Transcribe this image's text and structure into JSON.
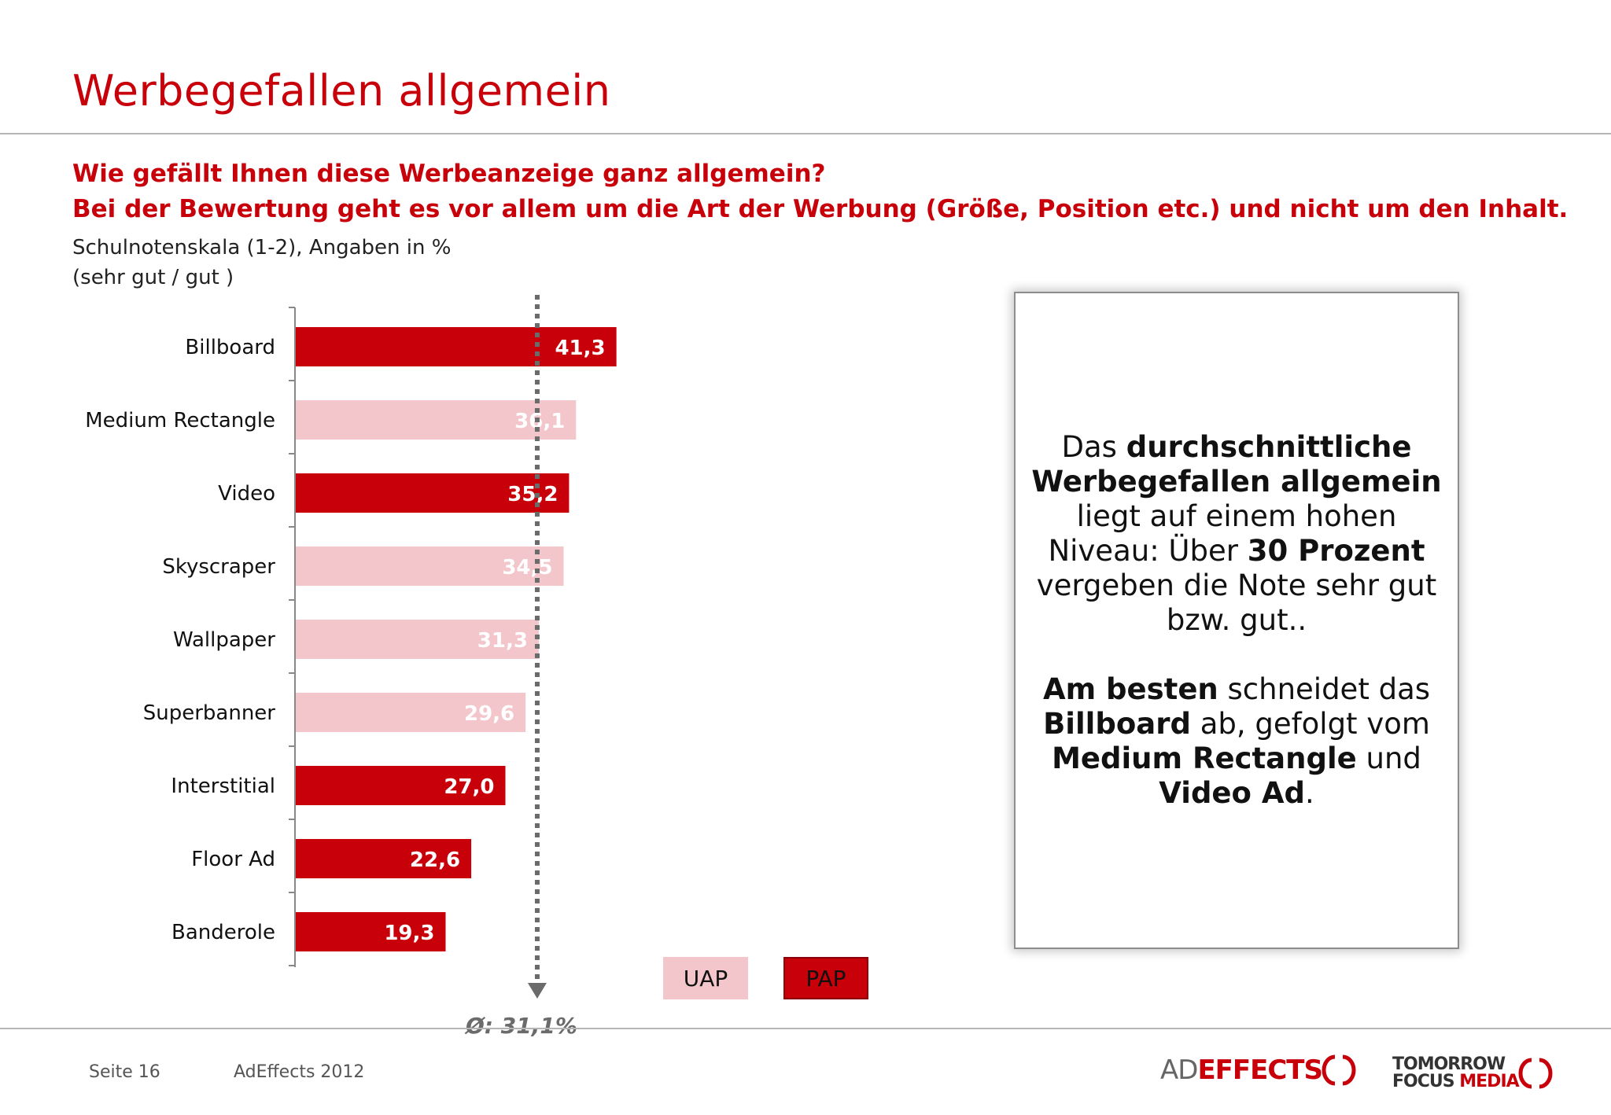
{
  "header": {
    "title": "Werbegefallen allgemein",
    "question_line1": "Wie gefällt Ihnen diese Werbeanzeige ganz allgemein?",
    "question_line2": "Bei der Bewertung geht es vor allem um die Art der Werbung (Größe, Position etc.) und nicht um den Inhalt.",
    "scale_line1": "Schulnotenskala (1-2), Angaben in %",
    "scale_line2": "(sehr gut / gut )"
  },
  "chart_data": {
    "type": "bar",
    "orientation": "horizontal",
    "categories": [
      "Billboard",
      "Medium Rectangle",
      "Video",
      "Skyscraper",
      "Wallpaper",
      "Superbanner",
      "Interstitial",
      "Floor Ad",
      "Banderole"
    ],
    "values": [
      41.3,
      36.1,
      35.2,
      34.5,
      31.3,
      29.6,
      27.0,
      22.6,
      19.3
    ],
    "value_labels": [
      "41,3",
      "36,1",
      "35,2",
      "34,5",
      "31,3",
      "29,6",
      "27,0",
      "22,6",
      "19,3"
    ],
    "group": [
      "PAP",
      "UAP",
      "PAP",
      "UAP",
      "UAP",
      "UAP",
      "PAP",
      "PAP",
      "PAP"
    ],
    "average": 31.1,
    "average_label": "Ø: 31,1%",
    "xlim": [
      0,
      100
    ],
    "legend": [
      {
        "name": "UAP",
        "color": "#f2c6cb"
      },
      {
        "name": "PAP",
        "color": "#c8000a"
      }
    ],
    "legend_placement": "bottom",
    "grid": false
  },
  "colors": {
    "PAP": "#c8000a",
    "UAP": "#f2c6cb",
    "average_line": "#6b6b6b"
  },
  "callout": {
    "p1_a": "Das ",
    "p1_b": "durchschnittliche Werbegefallen allgemein",
    "p1_c": " liegt auf einem hohen Niveau: Über ",
    "p1_d": "30 Prozent",
    "p1_e": " vergeben die Note sehr gut bzw. gut..",
    "p2_a": "Am besten",
    "p2_b": " schneidet das ",
    "p2_c": "Billboard",
    "p2_d": " ab, gefolgt vom ",
    "p2_e": "Medium Rectangle",
    "p2_f": " und ",
    "p2_g": "Video Ad",
    "p2_h": "."
  },
  "footer": {
    "page": "Seite 16",
    "source": "AdEffects 2012"
  },
  "logos": {
    "adeffects_ad": "AD",
    "adeffects_effects": "EFFECTS",
    "tfm_line1": "TOMORROW",
    "tfm_focus": "FOCUS",
    "tfm_media": "MEDIA"
  }
}
